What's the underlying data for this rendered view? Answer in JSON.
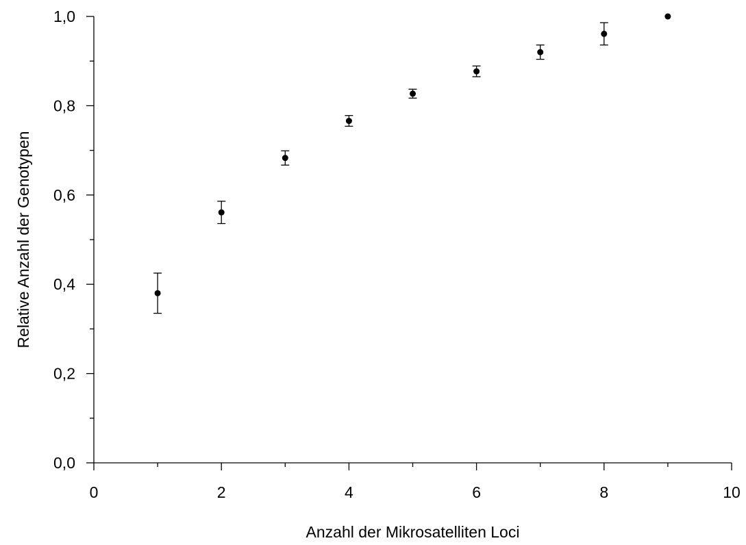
{
  "chart_data": {
    "type": "scatter",
    "title": "",
    "xlabel": "Anzahl der Mikrosatelliten Loci",
    "ylabel": "Relative Anzahl der Genotypen",
    "xlim": [
      0,
      10
    ],
    "ylim": [
      0,
      1.0
    ],
    "x_ticks": [
      0,
      2,
      4,
      6,
      8,
      10
    ],
    "x_tick_labels": [
      "0",
      "2",
      "4",
      "6",
      "8",
      "10"
    ],
    "x_minor_ticks": [
      1,
      3,
      5,
      7,
      9
    ],
    "y_ticks": [
      0,
      0.2,
      0.4,
      0.6,
      0.8,
      1.0
    ],
    "y_tick_labels": [
      "0,0",
      "0,2",
      "0,4",
      "0,6",
      "0,8",
      "1,0"
    ],
    "y_minor_ticks": [
      0.1,
      0.3,
      0.5,
      0.7,
      0.9
    ],
    "grid": false,
    "legend": "none",
    "series": [
      {
        "x": [
          1,
          2,
          3,
          4,
          5,
          6,
          7,
          8,
          9
        ],
        "y": [
          0.38,
          0.561,
          0.683,
          0.766,
          0.827,
          0.877,
          0.92,
          0.961,
          1.0
        ],
        "error": [
          0.045,
          0.025,
          0.016,
          0.012,
          0.01,
          0.012,
          0.016,
          0.025,
          0.0
        ]
      }
    ],
    "colors": {
      "marker": "#000000",
      "axis": "#000000"
    }
  }
}
